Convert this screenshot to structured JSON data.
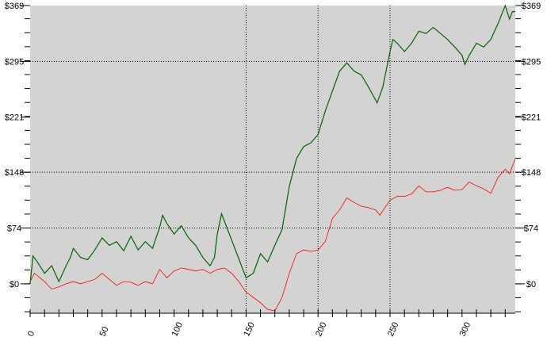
{
  "chart_data": {
    "type": "line",
    "title": "",
    "xlabel": "",
    "ylabel": "",
    "xlim": [
      0,
      337
    ],
    "ylim": [
      -39,
      369
    ],
    "x_ticks": [
      0,
      50,
      100,
      150,
      200,
      250,
      300
    ],
    "x_tick_labels": [
      "0",
      "50",
      "100",
      "150",
      "200",
      "250",
      "300"
    ],
    "y_ticks": [
      0,
      74,
      148,
      221,
      295,
      369
    ],
    "y_tick_labels": [
      "$0",
      "$74",
      "$148",
      "$221",
      "$295",
      "$369"
    ],
    "grid": {
      "vertical_at": [
        150,
        200,
        250
      ],
      "horizontal_at": [
        74,
        148,
        295
      ],
      "style": "dotted"
    },
    "background": "#d3d3d3",
    "series": [
      {
        "color": "#006400",
        "points": [
          [
            0,
            0
          ],
          [
            2,
            37
          ],
          [
            5,
            29
          ],
          [
            10,
            14
          ],
          [
            15,
            24
          ],
          [
            20,
            3
          ],
          [
            25,
            24
          ],
          [
            28,
            35
          ],
          [
            30,
            47
          ],
          [
            35,
            35
          ],
          [
            40,
            32
          ],
          [
            45,
            45
          ],
          [
            50,
            61
          ],
          [
            55,
            51
          ],
          [
            60,
            56
          ],
          [
            65,
            44
          ],
          [
            70,
            63
          ],
          [
            75,
            45
          ],
          [
            80,
            56
          ],
          [
            85,
            47
          ],
          [
            90,
            75
          ],
          [
            92,
            91
          ],
          [
            95,
            80
          ],
          [
            100,
            66
          ],
          [
            105,
            77
          ],
          [
            110,
            61
          ],
          [
            115,
            51
          ],
          [
            120,
            35
          ],
          [
            125,
            24
          ],
          [
            128,
            35
          ],
          [
            130,
            66
          ],
          [
            133,
            93
          ],
          [
            150,
            8
          ],
          [
            155,
            14
          ],
          [
            160,
            40
          ],
          [
            165,
            29
          ],
          [
            170,
            51
          ],
          [
            175,
            72
          ],
          [
            180,
            129
          ],
          [
            185,
            166
          ],
          [
            190,
            182
          ],
          [
            195,
            187
          ],
          [
            200,
            198
          ],
          [
            205,
            229
          ],
          [
            210,
            256
          ],
          [
            215,
            282
          ],
          [
            220,
            293
          ],
          [
            225,
            282
          ],
          [
            230,
            277
          ],
          [
            235,
            261
          ],
          [
            241,
            240
          ],
          [
            245,
            261
          ],
          [
            250,
            308
          ],
          [
            252,
            324
          ],
          [
            255,
            319
          ],
          [
            260,
            308
          ],
          [
            265,
            319
          ],
          [
            270,
            335
          ],
          [
            275,
            332
          ],
          [
            280,
            340
          ],
          [
            285,
            332
          ],
          [
            290,
            324
          ],
          [
            295,
            314
          ],
          [
            300,
            303
          ],
          [
            302,
            291
          ],
          [
            305,
            303
          ],
          [
            310,
            319
          ],
          [
            315,
            314
          ],
          [
            320,
            324
          ],
          [
            325,
            345
          ],
          [
            330,
            369
          ],
          [
            333,
            351
          ],
          [
            335,
            361
          ],
          [
            337,
            361
          ]
        ]
      },
      {
        "color": "#ff0000",
        "points": [
          [
            0,
            3
          ],
          [
            3,
            14
          ],
          [
            10,
            3
          ],
          [
            15,
            -7
          ],
          [
            20,
            -4
          ],
          [
            25,
            0
          ],
          [
            30,
            3
          ],
          [
            35,
            0
          ],
          [
            40,
            3
          ],
          [
            45,
            6
          ],
          [
            50,
            14
          ],
          [
            55,
            6
          ],
          [
            60,
            -2
          ],
          [
            65,
            3
          ],
          [
            70,
            2
          ],
          [
            75,
            -2
          ],
          [
            80,
            3
          ],
          [
            85,
            0
          ],
          [
            90,
            19
          ],
          [
            95,
            8
          ],
          [
            100,
            17
          ],
          [
            105,
            21
          ],
          [
            110,
            19
          ],
          [
            115,
            17
          ],
          [
            120,
            19
          ],
          [
            125,
            14
          ],
          [
            130,
            19
          ],
          [
            135,
            21
          ],
          [
            140,
            14
          ],
          [
            145,
            3
          ],
          [
            150,
            -11
          ],
          [
            155,
            -18
          ],
          [
            160,
            -25
          ],
          [
            165,
            -34
          ],
          [
            170,
            -36
          ],
          [
            175,
            -18
          ],
          [
            180,
            14
          ],
          [
            185,
            40
          ],
          [
            190,
            45
          ],
          [
            195,
            43
          ],
          [
            200,
            45
          ],
          [
            205,
            56
          ],
          [
            210,
            87
          ],
          [
            215,
            98
          ],
          [
            220,
            114
          ],
          [
            225,
            108
          ],
          [
            230,
            103
          ],
          [
            235,
            101
          ],
          [
            240,
            98
          ],
          [
            243,
            91
          ],
          [
            245,
            97
          ],
          [
            250,
            111
          ],
          [
            255,
            116
          ],
          [
            260,
            116
          ],
          [
            265,
            119
          ],
          [
            270,
            130
          ],
          [
            275,
            122
          ],
          [
            280,
            122
          ],
          [
            285,
            124
          ],
          [
            290,
            128
          ],
          [
            295,
            124
          ],
          [
            300,
            125
          ],
          [
            305,
            135
          ],
          [
            310,
            130
          ],
          [
            315,
            126
          ],
          [
            320,
            120
          ],
          [
            325,
            141
          ],
          [
            330,
            152
          ],
          [
            333,
            146
          ],
          [
            337,
            166
          ]
        ]
      }
    ]
  }
}
